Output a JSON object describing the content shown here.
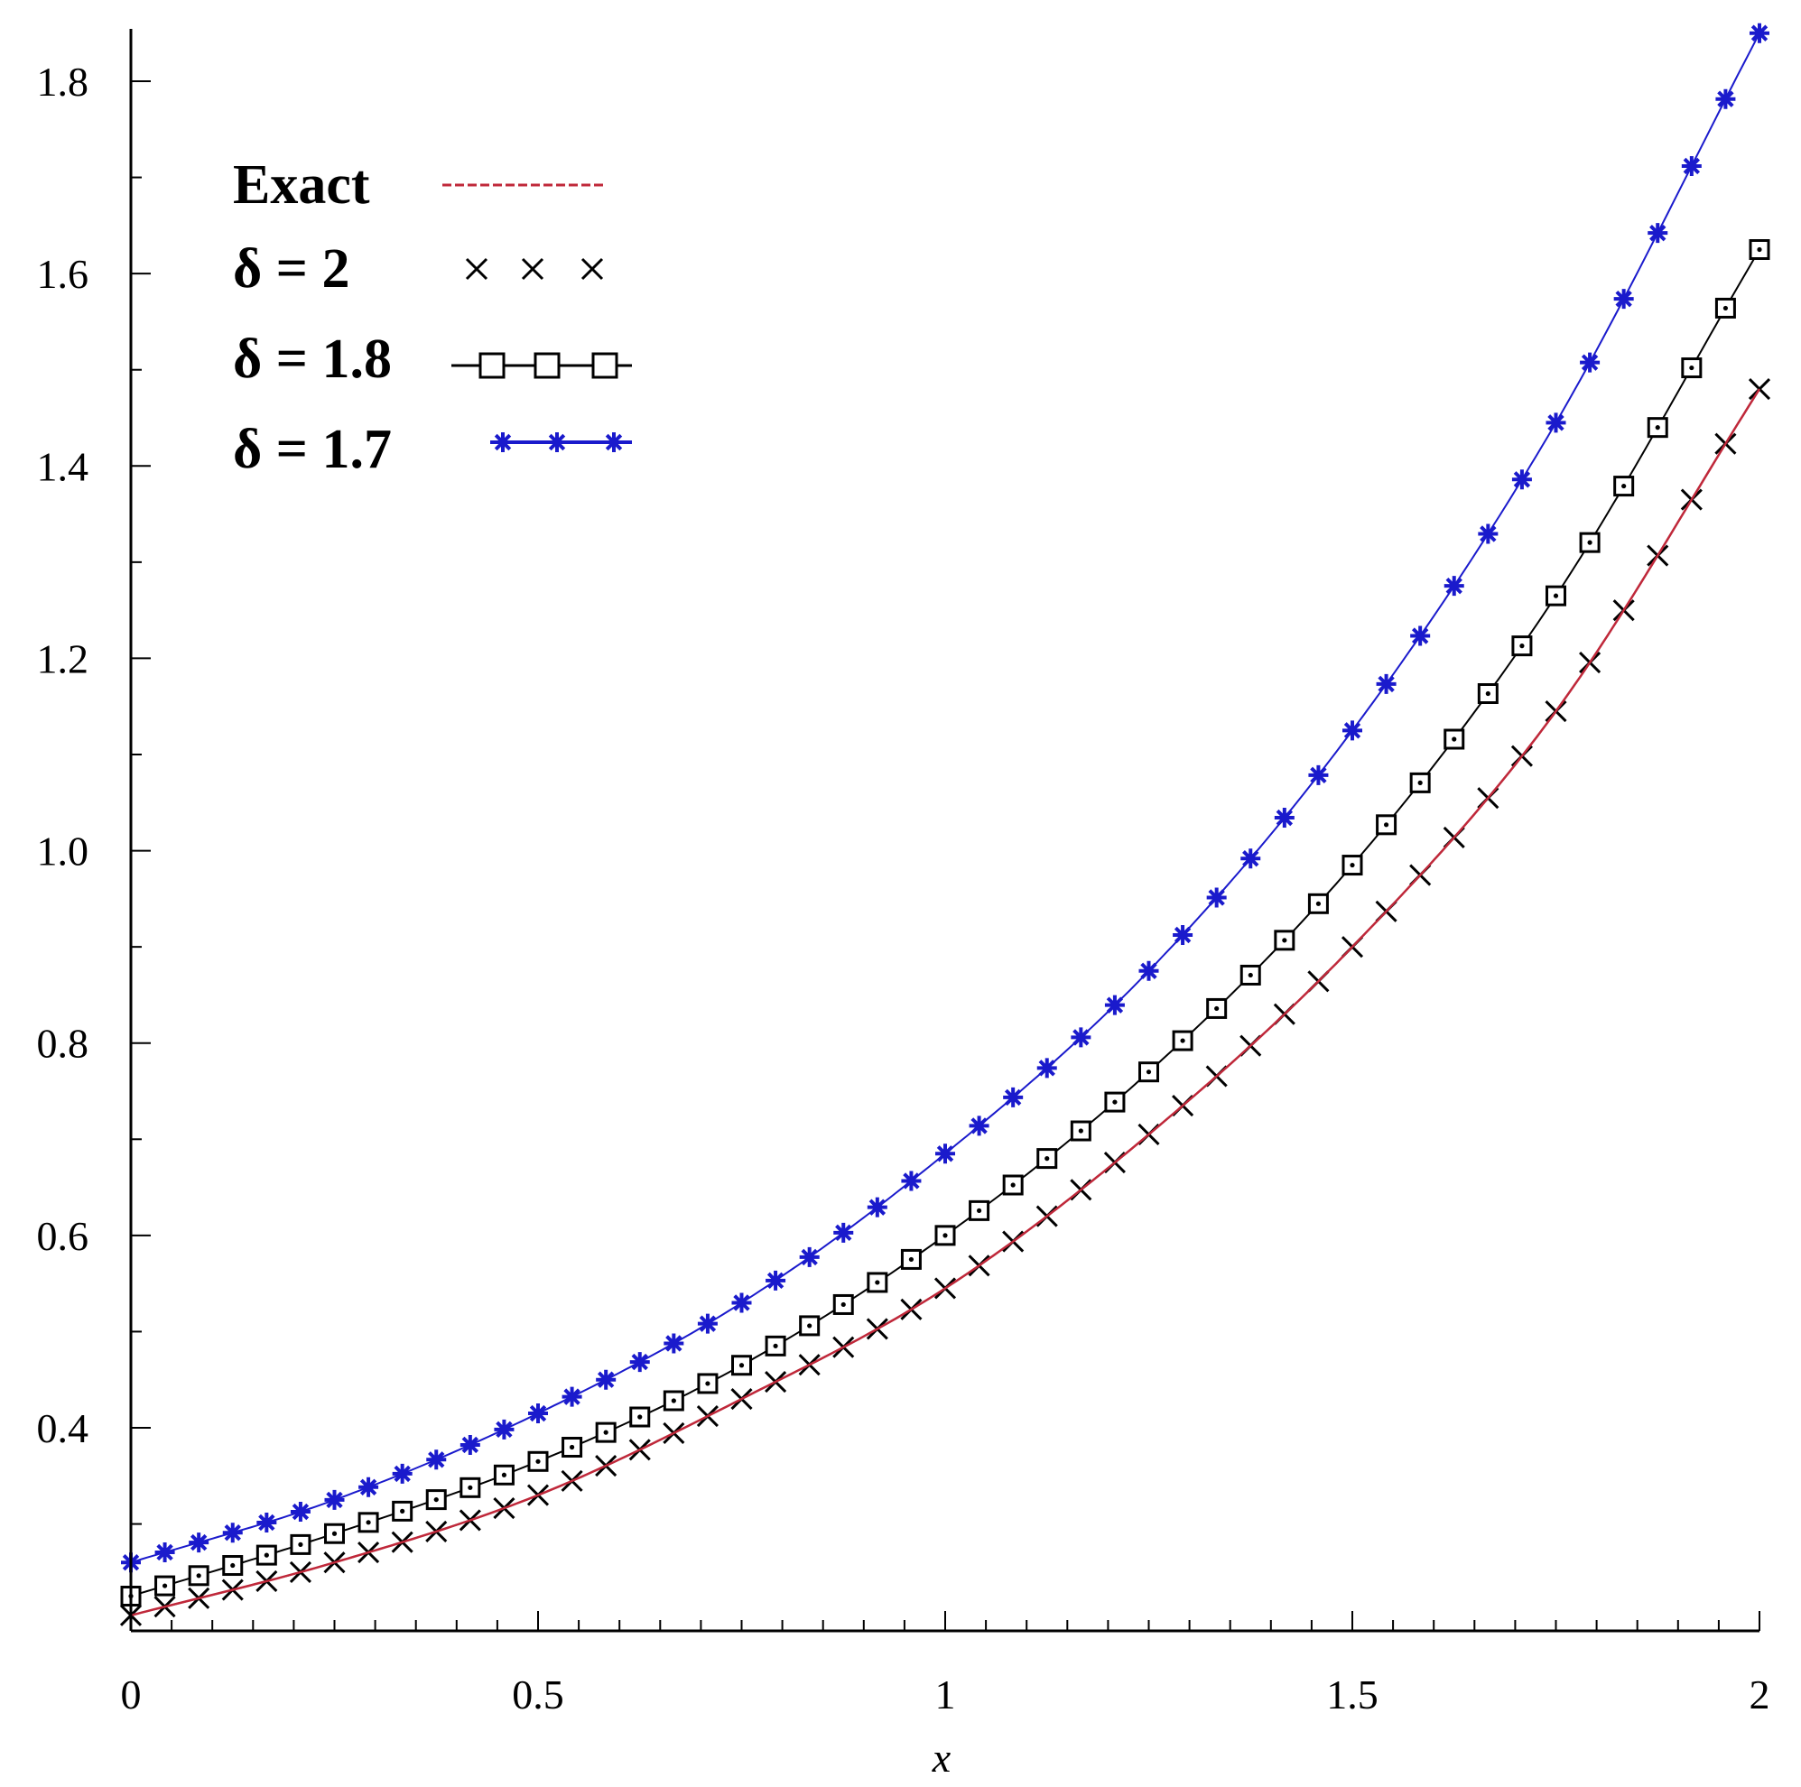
{
  "chart_data": {
    "type": "line",
    "title": "",
    "xlabel": "x",
    "ylabel": "",
    "xlim": [
      0,
      2
    ],
    "ylim": [
      0.2,
      1.85
    ],
    "x_ticks": [
      "0",
      "0.5",
      "1",
      "1.5",
      "2"
    ],
    "y_ticks": [
      "0.4",
      "0.6",
      "0.8",
      "1.0",
      "1.2",
      "1.4",
      "1.6",
      "1.8"
    ],
    "grid": false,
    "legend_position": "top-left",
    "sampling": {
      "x_start": 0,
      "x_end": 2,
      "points": 49
    },
    "series": [
      {
        "name": "Exact",
        "marker": "dashed-line",
        "color": "#c0283a",
        "x": [
          0,
          0.25,
          0.5,
          0.75,
          1.0,
          1.25,
          1.5,
          1.75,
          2.0
        ],
        "values": [
          0.205,
          0.26,
          0.33,
          0.43,
          0.545,
          0.705,
          0.9,
          1.145,
          1.48
        ]
      },
      {
        "name": "δ = 2",
        "marker": "x",
        "color": "#000000",
        "x": [
          0,
          0.25,
          0.5,
          0.75,
          1.0,
          1.25,
          1.5,
          1.75,
          2.0
        ],
        "values": [
          0.205,
          0.26,
          0.33,
          0.43,
          0.545,
          0.705,
          0.9,
          1.145,
          1.48
        ]
      },
      {
        "name": "δ = 1.8",
        "marker": "square",
        "color": "#000000",
        "x": [
          0,
          0.25,
          0.5,
          0.75,
          1.0,
          1.25,
          1.5,
          1.75,
          2.0
        ],
        "values": [
          0.225,
          0.29,
          0.365,
          0.465,
          0.6,
          0.77,
          0.985,
          1.265,
          1.625
        ]
      },
      {
        "name": "δ = 1.7",
        "marker": "star",
        "color": "#1a1acc",
        "x": [
          0,
          0.25,
          0.5,
          0.75,
          1.0,
          1.25,
          1.5,
          1.75,
          2.0
        ],
        "values": [
          0.26,
          0.325,
          0.415,
          0.53,
          0.685,
          0.875,
          1.125,
          1.445,
          1.85
        ]
      }
    ]
  }
}
